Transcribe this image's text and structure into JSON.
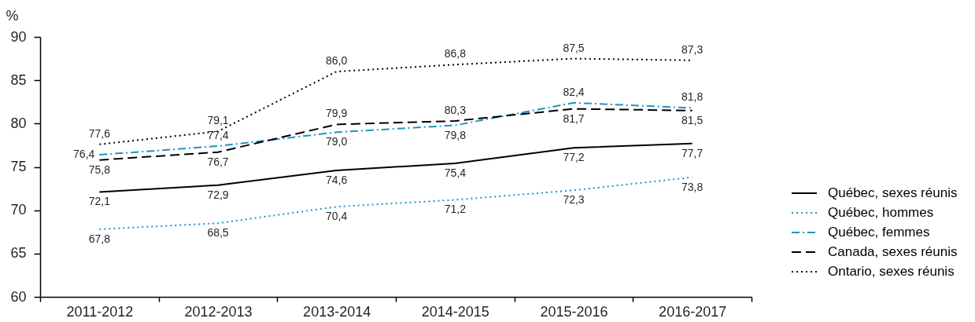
{
  "chart_data": {
    "type": "line",
    "ylabel": "%",
    "categories": [
      "2011-2012",
      "2012-2013",
      "2013-2014",
      "2014-2015",
      "2015-2016",
      "2016-2017"
    ],
    "ylim": [
      60,
      90
    ],
    "yticks": [
      60,
      65,
      70,
      75,
      80,
      85,
      90
    ],
    "grid": false,
    "legend": "right",
    "series": [
      {
        "name": "Québec, sexes réunis",
        "color": "#000000",
        "line_style": "solid",
        "values": [
          72.1,
          72.9,
          74.6,
          75.4,
          77.2,
          77.7
        ],
        "value_labels": [
          "72,1",
          "72,9",
          "74,6",
          "75,4",
          "77,2",
          "77,7"
        ]
      },
      {
        "name": "Québec, hommes",
        "color": "#1f93c6",
        "line_style": "dotted",
        "values": [
          67.8,
          68.5,
          70.4,
          71.2,
          72.3,
          73.8
        ],
        "value_labels": [
          "67,8",
          "68,5",
          "70,4",
          "71,2",
          "72,3",
          "73,8"
        ]
      },
      {
        "name": "Québec, femmes",
        "color": "#1f93c6",
        "line_style": "dashdot",
        "values": [
          76.4,
          77.4,
          79.0,
          79.8,
          82.4,
          81.8
        ],
        "value_labels": [
          "76,4",
          "77,4",
          "79,0",
          "79,8",
          "82,4",
          "81,8"
        ]
      },
      {
        "name": "Canada, sexes réunis",
        "color": "#000000",
        "line_style": "dashed",
        "values": [
          75.8,
          76.7,
          79.9,
          80.3,
          81.7,
          81.5
        ],
        "value_labels": [
          "75,8",
          "76,7",
          "79,9",
          "80,3",
          "81,7",
          "81,5"
        ]
      },
      {
        "name": "Ontario, sexes réunis",
        "color": "#000000",
        "line_style": "dotted",
        "values": [
          77.6,
          79.1,
          86.0,
          86.8,
          87.5,
          87.3
        ],
        "value_labels": [
          "77,6",
          "79,1",
          "86,0",
          "86,8",
          "87,5",
          "87,3"
        ]
      }
    ]
  }
}
